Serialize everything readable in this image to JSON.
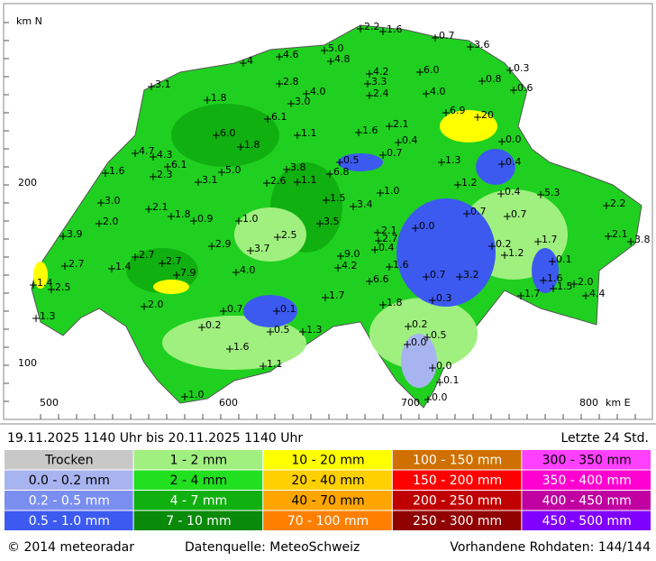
{
  "map": {
    "axis": {
      "north_label": "km N",
      "east_label": "km E",
      "y_ticks": [
        "200",
        "100"
      ],
      "x_ticks": [
        "500",
        "600",
        "700",
        "800"
      ]
    },
    "stations": [
      "2.2",
      "1.6",
      "0.7",
      "3.6",
      "5.0",
      "4.6",
      "4.8",
      "4",
      "0.3",
      "4.2",
      "6.0",
      "3.1",
      "2.8",
      "3.3",
      "0.8",
      "0.6",
      "4.0",
      "2.4",
      "4.0",
      "1.8",
      "3.0",
      "6.9",
      "20",
      "6.1",
      "2.1",
      "6.0",
      "1.1",
      "1.6",
      "0.4",
      "0.0",
      "1.8",
      "4.7",
      "4.3",
      "0.7",
      "6.1",
      "0.5",
      "1.3",
      "0.4",
      "1.6",
      "2.3",
      "3.8",
      "5.0",
      "6.8",
      "3.1",
      "2.6",
      "1.1",
      "1.2",
      "1.0",
      "0.4",
      "5.3",
      "3.0",
      "1.5",
      "3.4",
      "2.2",
      "2.1",
      "1.8",
      "0.9",
      "1.0",
      "0.7",
      "0.7",
      "2.0",
      "3.5",
      "0.0",
      "2.1",
      "2.5",
      "3.9",
      "2.7",
      "2.1",
      "3.8",
      "2.9",
      "3.7",
      "0.4",
      "0.2",
      "1.7",
      "1.2",
      "2.7",
      "9.0",
      "0.1",
      "2.7",
      "1.4",
      "2.7",
      "4.2",
      "1.6",
      "7.9",
      "4.0",
      "0.7",
      "3.2",
      "1.6",
      "2.0",
      "1.4",
      "2.5",
      "1.5",
      "6.6",
      "4.4",
      "1.7",
      "1.7",
      "2.0",
      "0.3",
      "1.8",
      "0.7",
      "0.1",
      "1.3",
      "0.2",
      "0.2",
      "0.5",
      "1.3",
      "0.5",
      "0.0",
      "1.6",
      "0.0",
      "1.1",
      "0.1",
      "1.0",
      "0.0"
    ]
  },
  "header": {
    "period": "19.11.2025 1140 Uhr   bis   20.11.2025 1140 Uhr",
    "window": "Letzte 24 Std."
  },
  "legend": {
    "rows": [
      [
        "Trocken",
        "1 - 2 mm",
        "10 - 20 mm",
        "100 - 150 mm",
        "300 - 350 mm"
      ],
      [
        "0.0 - 0.2 mm",
        "2 - 4 mm",
        "20 - 40 mm",
        "150 - 200 mm",
        "350 - 400 mm"
      ],
      [
        "0.2 - 0.5 mm",
        "4 - 7 mm",
        "40 - 70 mm",
        "200 - 250 mm",
        "400 - 450 mm"
      ],
      [
        "0.5 - 1.0 mm",
        "7 - 10 mm",
        "70 - 100 mm",
        "250 - 300 mm",
        "450 - 500 mm"
      ]
    ]
  },
  "footer": {
    "copyright": "© 2014  meteoradar",
    "source": "Datenquelle: MeteoSchweiz",
    "raw_data": "Vorhandene Rohdaten: 144/144"
  }
}
